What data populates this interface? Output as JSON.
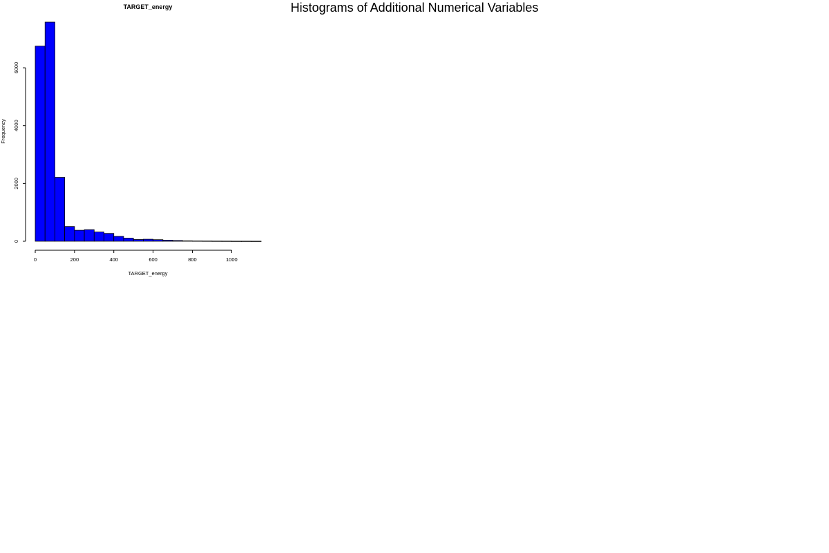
{
  "page_title": "Histograms of Additional Numerical Variables",
  "chart_data": {
    "type": "bar",
    "title": "TARGET_energy",
    "xlabel": "TARGET_energy",
    "ylabel": "Frequency",
    "bin_edges": [
      0,
      50,
      100,
      150,
      200,
      250,
      300,
      350,
      400,
      450,
      500,
      550,
      600,
      650,
      700,
      750,
      800,
      850,
      900,
      950,
      1000,
      1050,
      1100,
      1150
    ],
    "values": [
      6750,
      7580,
      2210,
      510,
      380,
      400,
      320,
      270,
      170,
      110,
      60,
      70,
      55,
      35,
      25,
      15,
      10,
      8,
      6,
      5,
      3,
      3,
      2
    ],
    "xlim": [
      0,
      1150
    ],
    "ylim": [
      0,
      7580
    ],
    "xticks": [
      0,
      200,
      400,
      600,
      800,
      1000
    ],
    "yticks": [
      0,
      2000,
      4000,
      6000
    ],
    "bar_color": "#0000ff",
    "edge_color": "#000000",
    "grid": false,
    "legend": "none"
  }
}
